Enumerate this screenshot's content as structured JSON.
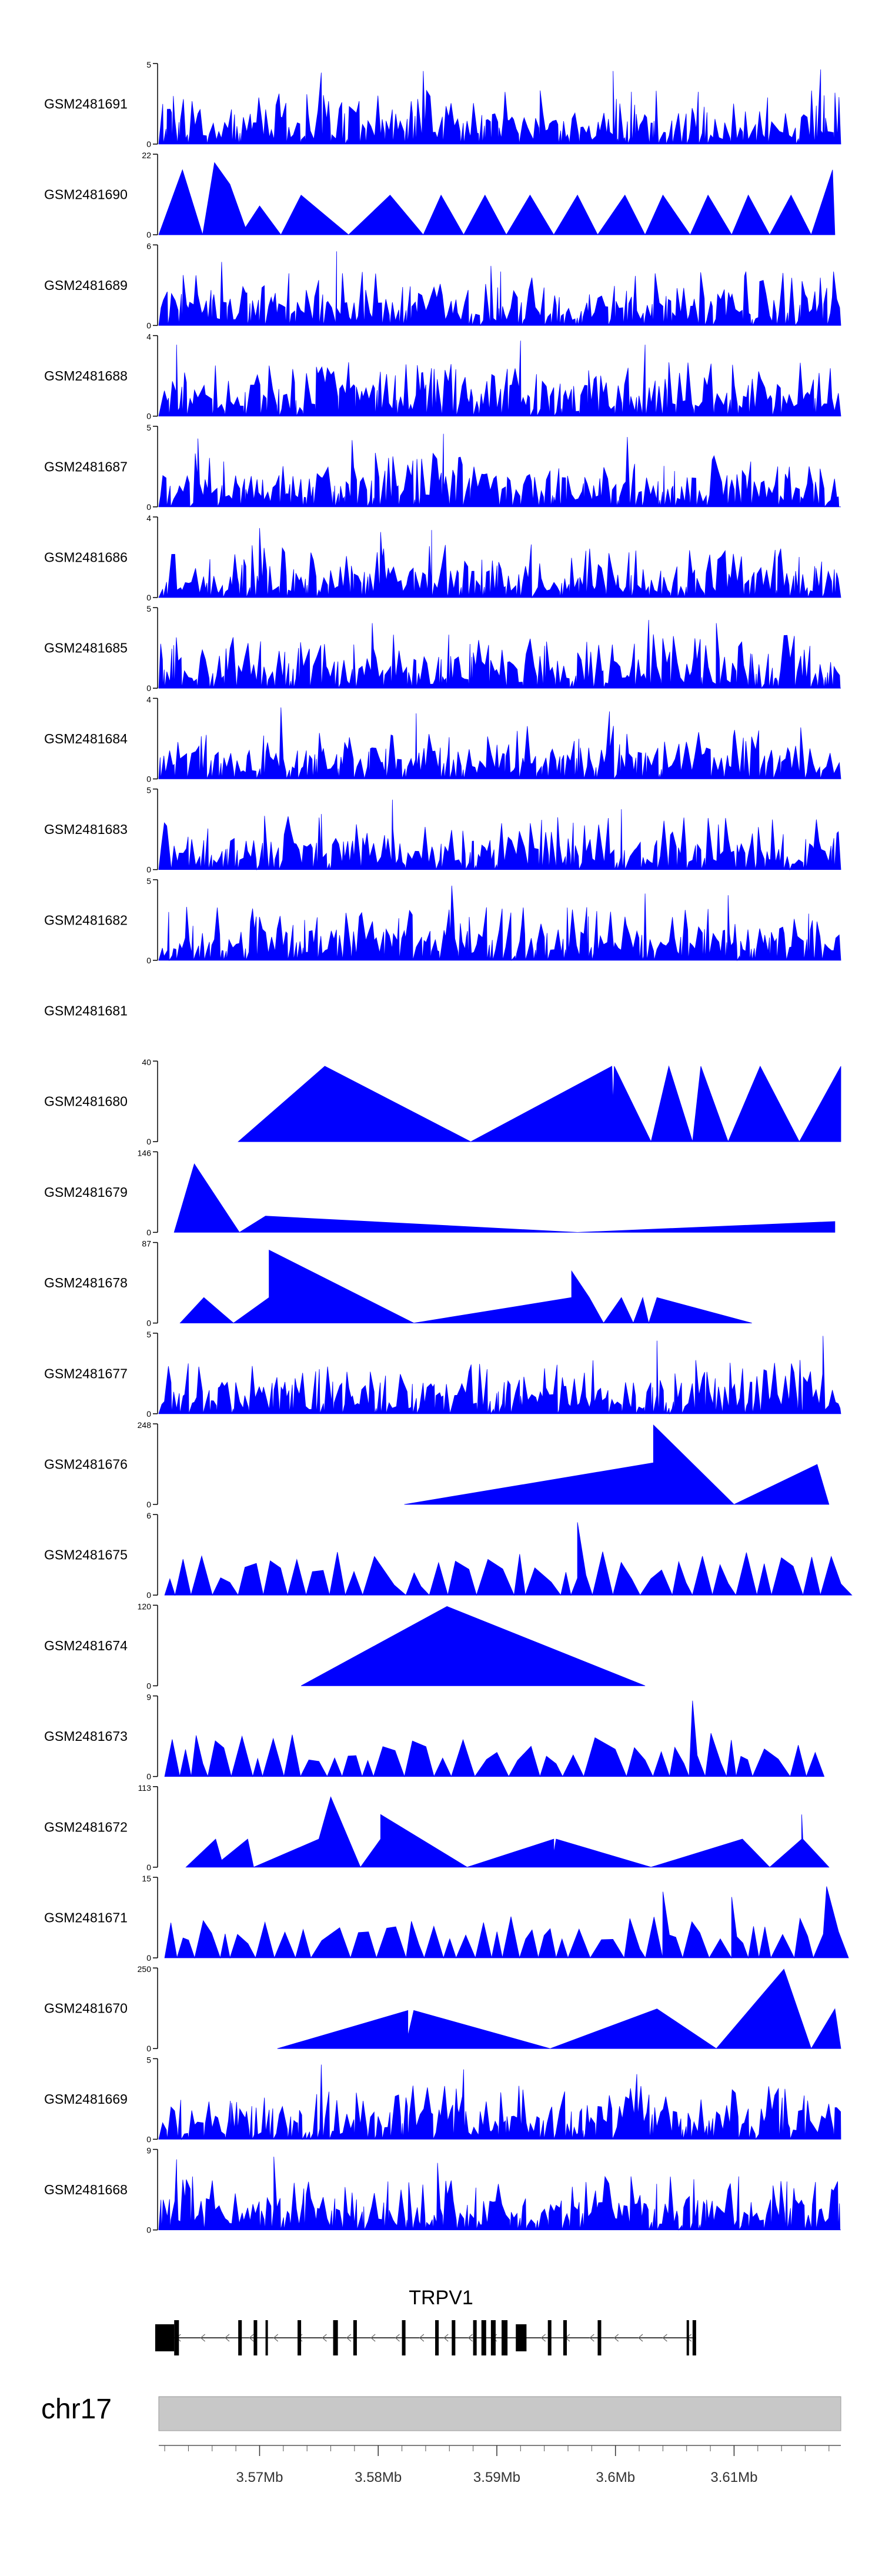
{
  "chart_data": {
    "type": "area",
    "title": "",
    "xlabel": "",
    "ylabel": "",
    "colors": {
      "fill": "#0000ff",
      "axis": "#000000",
      "chrom_bar": "#c8c8c8",
      "gene": "#000000"
    },
    "xlim": [
      3.5615,
      3.619
    ],
    "x_unit": "Mb",
    "tracks": [
      {
        "name": "GSM2481691",
        "ymax": 5,
        "pattern": "dense",
        "seed": 11,
        "peaks": [
          [
            3.5752,
            4.5
          ],
          [
            3.5838,
            4.6
          ],
          [
            3.5998,
            4.6
          ],
          [
            3.6173,
            4.7
          ]
        ]
      },
      {
        "name": "GSM2481690",
        "ymax": 22,
        "pattern": "wide",
        "seed": 0,
        "points": [
          [
            3.5615,
            0
          ],
          [
            3.5635,
            18
          ],
          [
            3.5652,
            0
          ],
          [
            3.5662,
            20
          ],
          [
            3.5675,
            14
          ],
          [
            3.5688,
            2
          ],
          [
            3.57,
            8
          ],
          [
            3.5718,
            0
          ],
          [
            3.5735,
            11
          ],
          [
            3.5775,
            0
          ],
          [
            3.581,
            11
          ],
          [
            3.5838,
            0
          ],
          [
            3.5853,
            11
          ],
          [
            3.5872,
            0
          ],
          [
            3.589,
            11
          ],
          [
            3.5908,
            0
          ],
          [
            3.5928,
            11
          ],
          [
            3.5948,
            0
          ],
          [
            3.5968,
            11
          ],
          [
            3.5985,
            0
          ],
          [
            3.6008,
            11
          ],
          [
            3.6025,
            0
          ],
          [
            3.604,
            11
          ],
          [
            3.6063,
            0
          ],
          [
            3.6078,
            11
          ],
          [
            3.6098,
            0
          ],
          [
            3.6112,
            11
          ],
          [
            3.613,
            0
          ],
          [
            3.6148,
            11
          ],
          [
            3.6165,
            0
          ],
          [
            3.6183,
            18
          ],
          [
            3.6185,
            0
          ]
        ]
      },
      {
        "name": "GSM2481689",
        "ymax": 6,
        "pattern": "dense",
        "seed": 23,
        "peaks": [
          [
            3.5668,
            4.8
          ],
          [
            3.5765,
            5.6
          ],
          [
            3.5895,
            4.5
          ]
        ]
      },
      {
        "name": "GSM2481688",
        "ymax": 4,
        "pattern": "dense",
        "seed": 31,
        "peaks": [
          [
            3.563,
            3.6
          ],
          [
            3.592,
            3.8
          ],
          [
            3.6025,
            3.6
          ]
        ]
      },
      {
        "name": "GSM2481687",
        "ymax": 5,
        "pattern": "dense",
        "seed": 47,
        "peaks": [
          [
            3.5648,
            4.3
          ],
          [
            3.5778,
            4.2
          ],
          [
            3.5855,
            4.6
          ],
          [
            3.601,
            4.4
          ]
        ]
      },
      {
        "name": "GSM2481686",
        "ymax": 4,
        "pattern": "dense",
        "seed": 53,
        "peaks": [
          [
            3.57,
            3.5
          ],
          [
            3.5802,
            3.3
          ],
          [
            3.5845,
            3.4
          ]
        ]
      },
      {
        "name": "GSM2481685",
        "ymax": 5,
        "pattern": "dense",
        "seed": 67,
        "peaks": [
          [
            3.5795,
            4.1
          ],
          [
            3.6028,
            4.3
          ],
          [
            3.6085,
            4.1
          ]
        ]
      },
      {
        "name": "GSM2481684",
        "ymax": 4,
        "pattern": "dense",
        "seed": 71,
        "peaks": [
          [
            3.5718,
            3.6
          ],
          [
            3.5832,
            3.3
          ],
          [
            3.5995,
            3.4
          ]
        ]
      },
      {
        "name": "GSM2481683",
        "ymax": 5,
        "pattern": "dense",
        "seed": 83,
        "peaks": [
          [
            3.5752,
            3.5
          ],
          [
            3.5812,
            4.4
          ],
          [
            3.6005,
            3.8
          ]
        ]
      },
      {
        "name": "GSM2481682",
        "ymax": 5,
        "pattern": "dense",
        "seed": 97,
        "peaks": [
          [
            3.5862,
            4.7
          ],
          [
            3.6025,
            4.2
          ],
          [
            3.6095,
            4.1
          ]
        ]
      },
      {
        "name": "GSM2481681",
        "empty": true
      },
      {
        "name": "GSM2481680",
        "ymax": 40,
        "pattern": "wide",
        "seed": 0,
        "points": [
          [
            3.5682,
            0
          ],
          [
            3.5755,
            38
          ],
          [
            3.5878,
            0
          ],
          [
            3.5997,
            38
          ],
          [
            3.5998,
            20
          ],
          [
            3.5999,
            38
          ],
          [
            3.603,
            0
          ],
          [
            3.6045,
            38
          ],
          [
            3.6065,
            0
          ],
          [
            3.6072,
            38
          ],
          [
            3.6095,
            0
          ],
          [
            3.6122,
            38
          ],
          [
            3.6155,
            0
          ],
          [
            3.619,
            38
          ],
          [
            3.619,
            0
          ]
        ]
      },
      {
        "name": "GSM2481679",
        "ymax": 146,
        "pattern": "wide",
        "seed": 0,
        "points": [
          [
            3.5628,
            0
          ],
          [
            3.5645,
            126
          ],
          [
            3.5683,
            0
          ],
          [
            3.5705,
            30
          ],
          [
            3.5968,
            0
          ],
          [
            3.6185,
            20
          ],
          [
            3.6185,
            0
          ]
        ]
      },
      {
        "name": "GSM2481678",
        "ymax": 87,
        "pattern": "wide",
        "seed": 0,
        "points": [
          [
            3.5633,
            0
          ],
          [
            3.5653,
            28
          ],
          [
            3.5678,
            0
          ],
          [
            3.5708,
            28
          ],
          [
            3.5708,
            80
          ],
          [
            3.583,
            0
          ],
          [
            3.5963,
            28
          ],
          [
            3.5963,
            57
          ],
          [
            3.5978,
            28
          ],
          [
            3.599,
            0
          ],
          [
            3.6005,
            28
          ],
          [
            3.6015,
            0
          ],
          [
            3.6023,
            28
          ],
          [
            3.6028,
            0
          ],
          [
            3.6035,
            28
          ],
          [
            3.6115,
            0
          ]
        ]
      },
      {
        "name": "GSM2481677",
        "ymax": 5,
        "pattern": "dense",
        "seed": 101,
        "peaks": [
          [
            3.6035,
            4.6
          ],
          [
            3.6175,
            4.9
          ]
        ]
      },
      {
        "name": "GSM2481676",
        "ymax": 248,
        "pattern": "wide",
        "seed": 0,
        "points": [
          [
            3.5822,
            0
          ],
          [
            3.6032,
            130
          ],
          [
            3.6032,
            248
          ],
          [
            3.61,
            0
          ],
          [
            3.617,
            125
          ],
          [
            3.618,
            0
          ]
        ]
      },
      {
        "name": "GSM2481675",
        "ymax": 6,
        "pattern": "sparse",
        "seed": 113,
        "peaks": [
          [
            3.5968,
            5.5
          ]
        ]
      },
      {
        "name": "GSM2481674",
        "ymax": 120,
        "pattern": "wide",
        "seed": 0,
        "points": [
          [
            3.5735,
            0
          ],
          [
            3.5858,
            120
          ],
          [
            3.6025,
            0
          ]
        ]
      },
      {
        "name": "GSM2481673",
        "ymax": 9,
        "pattern": "sparse",
        "seed": 127,
        "peaks": [
          [
            3.6065,
            8.6
          ]
        ]
      },
      {
        "name": "GSM2481672",
        "ymax": 113,
        "pattern": "wide",
        "seed": 0,
        "points": [
          [
            3.5638,
            0
          ],
          [
            3.5663,
            40
          ],
          [
            3.5668,
            10
          ],
          [
            3.569,
            40
          ],
          [
            3.5695,
            0
          ],
          [
            3.575,
            40
          ],
          [
            3.576,
            100
          ],
          [
            3.5785,
            0
          ],
          [
            3.5802,
            40
          ],
          [
            3.5802,
            75
          ],
          [
            3.5875,
            0
          ],
          [
            3.5948,
            40
          ],
          [
            3.5948,
            20
          ],
          [
            3.595,
            40
          ],
          [
            3.603,
            0
          ],
          [
            3.6107,
            40
          ],
          [
            3.613,
            0
          ],
          [
            3.6157,
            40
          ],
          [
            3.6157,
            75
          ],
          [
            3.6158,
            40
          ],
          [
            3.618,
            0
          ]
        ]
      },
      {
        "name": "GSM2481671",
        "ymax": 15,
        "pattern": "sparse",
        "seed": 131,
        "peaks": [
          [
            3.604,
            12.5
          ],
          [
            3.6098,
            11.5
          ],
          [
            3.6178,
            13.5
          ]
        ]
      },
      {
        "name": "GSM2481670",
        "ymax": 250,
        "pattern": "wide",
        "seed": 0,
        "points": [
          [
            3.5715,
            0
          ],
          [
            3.5825,
            120
          ],
          [
            3.5825,
            40
          ],
          [
            3.583,
            120
          ],
          [
            3.5945,
            0
          ],
          [
            3.6035,
            125
          ],
          [
            3.6085,
            0
          ],
          [
            3.6142,
            250
          ],
          [
            3.6165,
            0
          ],
          [
            3.6185,
            125
          ],
          [
            3.619,
            0
          ]
        ]
      },
      {
        "name": "GSM2481669",
        "ymax": 5,
        "pattern": "dense",
        "seed": 137,
        "peaks": [
          [
            3.5752,
            4.7
          ],
          [
            3.5872,
            4.4
          ],
          [
            3.6018,
            4.1
          ]
        ]
      },
      {
        "name": "GSM2481668",
        "ymax": 9,
        "pattern": "dense",
        "seed": 149,
        "peaks": [
          [
            3.563,
            8.0
          ],
          [
            3.5712,
            8.3
          ],
          [
            3.585,
            7.6
          ]
        ]
      }
    ],
    "gene": {
      "name": "TRPV1",
      "strand": "-",
      "start": 3.5612,
      "end": 3.6068,
      "exons": [
        [
          3.5612,
          3.5628,
          1
        ],
        [
          3.5628,
          3.5632,
          0
        ],
        [
          3.5682,
          3.5685,
          0
        ],
        [
          3.5695,
          3.5698,
          0
        ],
        [
          3.5705,
          3.5707,
          0
        ],
        [
          3.5732,
          3.5735,
          0
        ],
        [
          3.5762,
          3.5766,
          0
        ],
        [
          3.5779,
          3.5782,
          0
        ],
        [
          3.582,
          3.5823,
          0
        ],
        [
          3.5848,
          3.5851,
          0
        ],
        [
          3.5862,
          3.5865,
          0
        ],
        [
          3.588,
          3.5883,
          0
        ],
        [
          3.5887,
          3.5891,
          0
        ],
        [
          3.5895,
          3.5899,
          0
        ],
        [
          3.5904,
          3.5909,
          0
        ],
        [
          3.5916,
          3.5925,
          1
        ],
        [
          3.5943,
          3.5946,
          0
        ],
        [
          3.5956,
          3.5959,
          0
        ],
        [
          3.5985,
          3.5988,
          0
        ],
        [
          3.606,
          3.6062,
          0
        ],
        [
          3.6065,
          3.6068,
          0
        ]
      ]
    },
    "chromosome": {
      "label": "chr17",
      "ticks": [
        {
          "value": 3.57,
          "label": "3.57Mb"
        },
        {
          "value": 3.58,
          "label": "3.58Mb"
        },
        {
          "value": 3.59,
          "label": "3.59Mb"
        },
        {
          "value": 3.6,
          "label": "3.6Mb"
        },
        {
          "value": 3.61,
          "label": "3.61Mb"
        }
      ]
    }
  }
}
